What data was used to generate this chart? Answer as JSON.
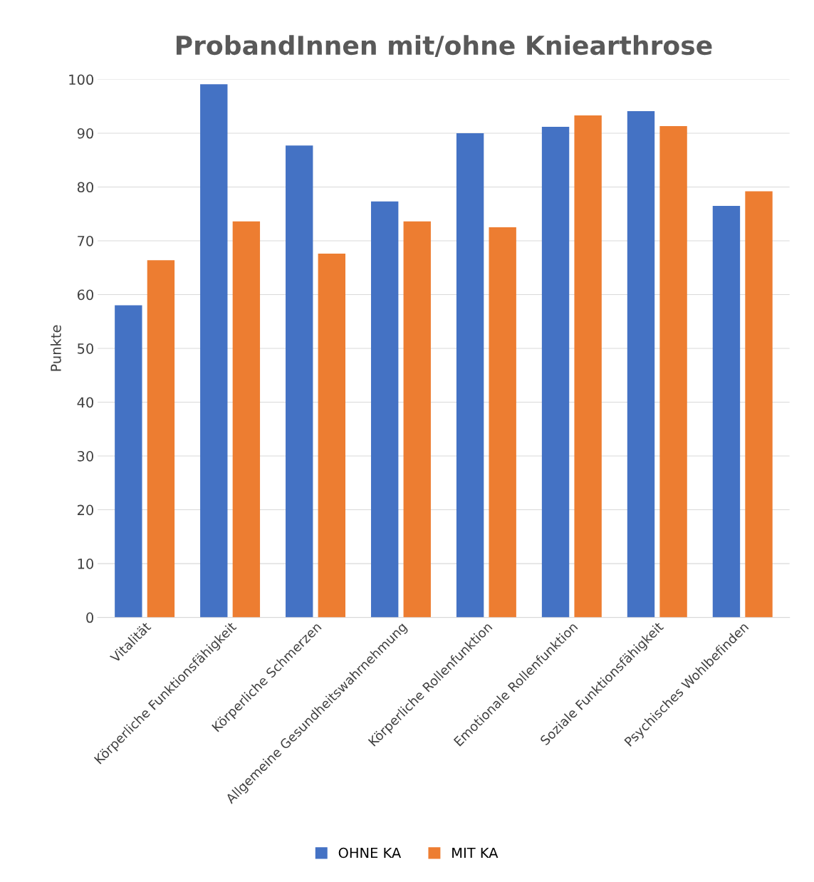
{
  "chart_data": {
    "type": "bar",
    "title": "ProbandInnen mit/ohne Kniearthrose",
    "ylabel": "Punkte",
    "categories": [
      "Vitalität",
      "Körperliche Funktionsfähigkeit",
      "Körperliche Schmerzen",
      "Allgemeine Gesundheitswahrnehmung",
      "Körperliche Rollenfunktion",
      "Emotionale Rollenfunktion",
      "Soziale Funktionsfähigkeit",
      "Psychisches Wohlbefinden"
    ],
    "series": [
      {
        "name": "OHNE KA",
        "color": "#4472c4",
        "values": [
          58,
          99.1,
          87.7,
          77.3,
          90.0,
          91.2,
          94.1,
          76.5
        ]
      },
      {
        "name": "MIT KA",
        "color": "#ed7d31",
        "values": [
          66.4,
          73.6,
          67.6,
          73.6,
          72.5,
          93.3,
          91.3,
          79.2
        ]
      }
    ],
    "ylim": [
      0,
      100
    ],
    "yticks": [
      0,
      10,
      20,
      30,
      40,
      50,
      60,
      70,
      80,
      90,
      100
    ],
    "grid": "y",
    "legend": "bottom"
  }
}
